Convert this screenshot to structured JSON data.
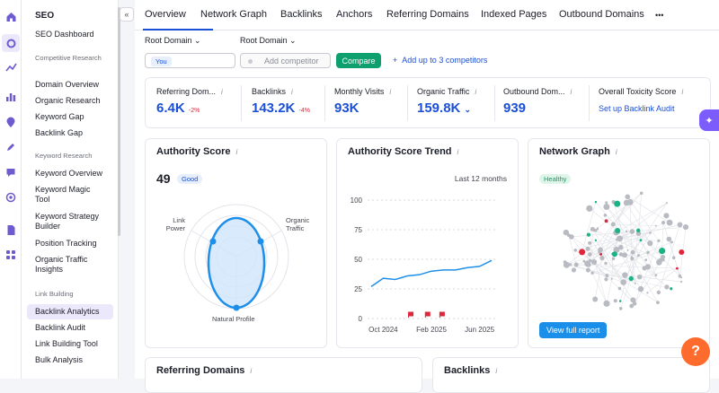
{
  "rail": {
    "icons": [
      "home-icon",
      "seo-icon",
      "trend-icon",
      "chart-icon",
      "location-icon",
      "pen-icon",
      "chat-icon",
      "target-icon",
      "doc-icon",
      "apps-icon"
    ]
  },
  "sidebar": {
    "title": "SEO",
    "items": [
      {
        "label": "SEO Dashboard",
        "type": "item"
      },
      {
        "label": "Competitive Research",
        "type": "head"
      },
      {
        "label": "Domain Overview",
        "type": "item"
      },
      {
        "label": "Organic Research",
        "type": "item"
      },
      {
        "label": "Keyword Gap",
        "type": "item"
      },
      {
        "label": "Backlink Gap",
        "type": "item"
      },
      {
        "label": "Keyword Research",
        "type": "head"
      },
      {
        "label": "Keyword Overview",
        "type": "item"
      },
      {
        "label": "Keyword Magic Tool",
        "type": "item"
      },
      {
        "label": "Keyword Strategy Builder",
        "type": "item"
      },
      {
        "label": "Position Tracking",
        "type": "item"
      },
      {
        "label": "Organic Traffic Insights",
        "type": "item"
      },
      {
        "label": "Link Building",
        "type": "head"
      },
      {
        "label": "Backlink Analytics",
        "type": "item"
      },
      {
        "label": "Backlink Audit",
        "type": "item"
      },
      {
        "label": "Link Building Tool",
        "type": "item"
      },
      {
        "label": "Bulk Analysis",
        "type": "item"
      }
    ]
  },
  "tabs": [
    "Overview",
    "Network Graph",
    "Backlinks",
    "Anchors",
    "Referring Domains",
    "Indexed Pages",
    "Outbound Domains"
  ],
  "more": "•••",
  "collapse": "«",
  "filters": {
    "root1": "Root Domain",
    "root2": "Root Domain",
    "you": "You",
    "competitor_placeholder": "Add competitor",
    "compare": "Compare",
    "add_competitors": "Add up to 3 competitors"
  },
  "metrics": [
    {
      "label": "Referring Dom...",
      "value": "6.4K",
      "delta": "-2%"
    },
    {
      "label": "Backlinks",
      "value": "143.2K",
      "delta": "-4%"
    },
    {
      "label": "Monthly Visits",
      "value": "93K",
      "delta": ""
    },
    {
      "label": "Organic Traffic",
      "value": "159.8K",
      "delta": ""
    },
    {
      "label": "Outbound Dom...",
      "value": "939",
      "delta": ""
    },
    {
      "label": "Overall Toxicity Score",
      "value": "",
      "delta": "",
      "link": "Set up Backlink Audit"
    }
  ],
  "authority": {
    "title": "Authority Score",
    "score": "49",
    "badge": "Good",
    "labels": {
      "link": "Link\nPower",
      "organic": "Organic\nTraffic",
      "natural": "Natural Profile"
    }
  },
  "trend": {
    "title": "Authority Score Trend",
    "period": "Last 12 months"
  },
  "chart_data": {
    "type": "line",
    "title": "Authority Score Trend",
    "x": [
      "Sep 2024",
      "Oct 2024",
      "Nov 2024",
      "Dec 2024",
      "Jan 2025",
      "Feb 2025",
      "Mar 2025",
      "Apr 2025",
      "May 2025",
      "Jun 2025",
      "Jul 2025"
    ],
    "values": [
      27,
      34,
      33,
      36,
      37,
      40,
      41,
      41,
      43,
      44,
      49
    ],
    "xticks": [
      "Oct 2024",
      "Feb 2025",
      "Jun 2025"
    ],
    "yticks": [
      0,
      25,
      50,
      75,
      100
    ],
    "ylim": [
      0,
      100
    ]
  },
  "network": {
    "title": "Network Graph",
    "badge": "Healthy",
    "button": "View full report"
  },
  "bottom": {
    "left": "Referring Domains",
    "right": "Backlinks"
  },
  "help": "?",
  "ai_icon": "✦",
  "info_glyph": "i"
}
